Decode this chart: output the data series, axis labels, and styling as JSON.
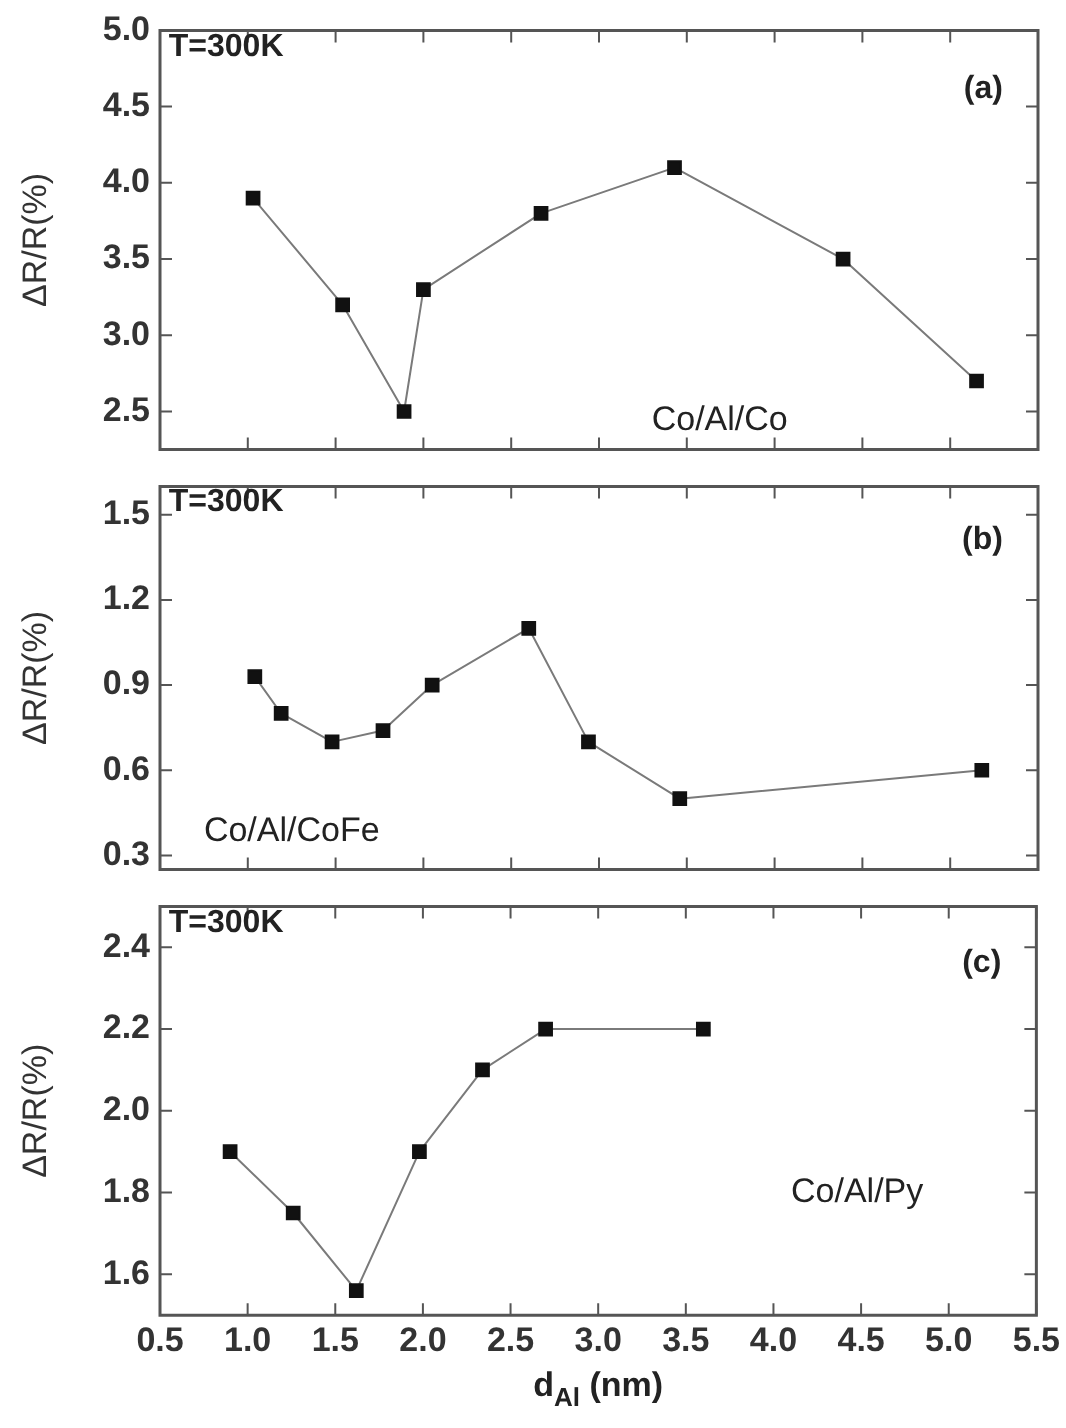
{
  "chart_data": [
    {
      "type": "line",
      "ylabel": "ΔR/R(%)",
      "xlim": [
        0.5,
        5.5
      ],
      "xticks": [
        0.5,
        1.0,
        1.5,
        2.0,
        2.5,
        3.0,
        3.5,
        4.0,
        4.5,
        5.0,
        5.5
      ],
      "ylim": [
        2.25,
        5.0
      ],
      "yticks": [
        2.5,
        {
          "value": 3,
          "label": "3.0"
        },
        3.5,
        {
          "value": 4,
          "label": "4.0"
        },
        4.5,
        {
          "value": 5,
          "label": "5.0"
        }
      ],
      "tick_labels": "y",
      "grid": false,
      "marker": "square",
      "line_style": "solid",
      "annotations": [
        "T=300K",
        "(a)",
        "Co/Al/Co"
      ],
      "series": [
        {
          "color": "#111111",
          "x": [
            1.03,
            1.54,
            1.89,
            2.0,
            2.67,
            3.43,
            4.39,
            5.15
          ],
          "values": [
            3.9,
            3.2,
            2.5,
            3.3,
            3.8,
            4.1,
            3.5,
            2.7
          ]
        }
      ]
    },
    {
      "type": "line",
      "ylabel": "ΔR/R(%)",
      "xlim": [
        0.5,
        5.5
      ],
      "xticks": [
        0.5,
        1.0,
        1.5,
        2.0,
        2.5,
        3.0,
        3.5,
        4.0,
        4.5,
        5.0,
        5.5
      ],
      "ylim": [
        0.25,
        1.6
      ],
      "yticks": [
        0.3,
        0.6,
        0.9,
        1.2,
        1.5
      ],
      "tick_labels": "y",
      "grid": false,
      "marker": "square",
      "line_style": "solid",
      "annotations": [
        "T=300K",
        "(b)",
        "Co/Al/CoFe"
      ],
      "series": [
        {
          "color": "#111111",
          "x": [
            1.04,
            1.19,
            1.48,
            1.77,
            2.05,
            2.6,
            2.94,
            3.46,
            5.18
          ],
          "values": [
            0.93,
            0.8,
            0.7,
            0.74,
            0.9,
            1.1,
            0.7,
            0.5,
            0.6
          ]
        }
      ]
    },
    {
      "type": "line",
      "xlabel": "d$_{Al}$ (nm)",
      "ylabel": "ΔR/R(%)",
      "xlim": [
        0.5,
        5.5
      ],
      "xticks": [
        0.5,
        {
          "value": 1,
          "label": "1.0"
        },
        1.5,
        {
          "value": 2,
          "label": "2.0"
        },
        2.5,
        {
          "value": 3,
          "label": "3.0"
        },
        3.5,
        {
          "value": 4,
          "label": "4.0"
        },
        4.5,
        {
          "value": 5,
          "label": "5.0"
        },
        5.5
      ],
      "ylim": [
        1.5,
        2.5
      ],
      "yticks": [
        1.6,
        1.8,
        {
          "value": 2,
          "label": "2.0"
        },
        2.2,
        2.4
      ],
      "grid": false,
      "marker": "square",
      "line_style": "solid",
      "annotations": [
        "T=300K",
        "(c)",
        "Co/Al/Py"
      ],
      "series": [
        {
          "color": "#111111",
          "x": [
            0.9,
            1.26,
            1.62,
            1.98,
            2.34,
            2.7,
            3.6
          ],
          "values": [
            1.9,
            1.75,
            1.56,
            1.9,
            2.1,
            2.2,
            2.2
          ]
        }
      ]
    }
  ]
}
